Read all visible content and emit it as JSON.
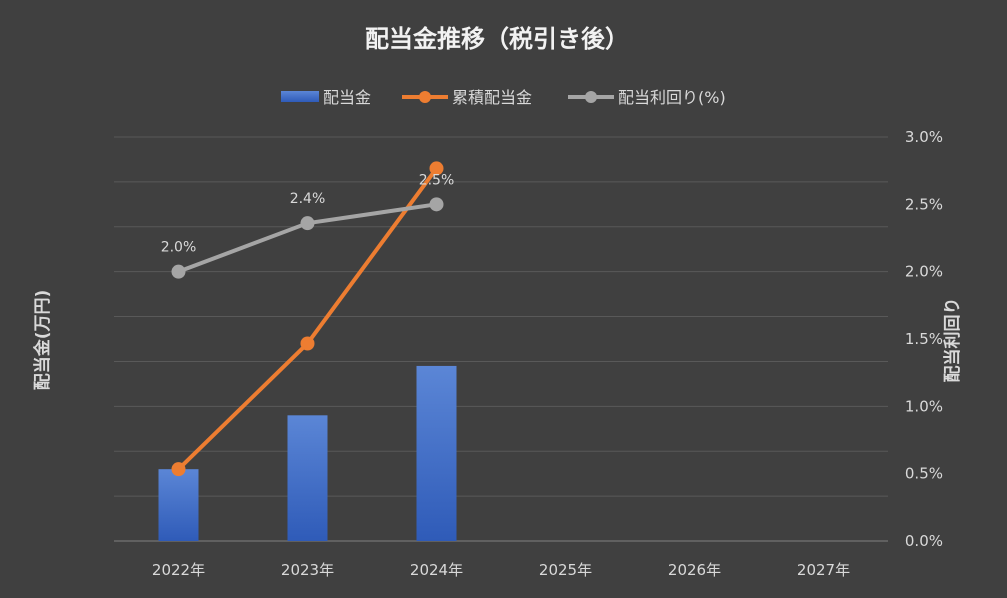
{
  "chart_data": {
    "type": "bar",
    "title": "配当金推移（税引き後）",
    "categories": [
      "2022年",
      "2023年",
      "2024年",
      "2025年",
      "2026年",
      "2027年"
    ],
    "series": [
      {
        "name": "配当金",
        "kind": "bar",
        "axis": "left",
        "values": [
          1.6,
          2.8,
          3.9,
          null,
          null,
          null
        ],
        "color": "#4472c4"
      },
      {
        "name": "累積配当金",
        "kind": "line",
        "axis": "left",
        "values": [
          1.6,
          4.4,
          8.3,
          null,
          null,
          null
        ],
        "color": "#ed7d31"
      },
      {
        "name": "配当利回り(%)",
        "kind": "line",
        "axis": "right",
        "values": [
          2.0,
          2.36,
          2.5,
          null,
          null,
          null
        ],
        "color": "#a5a5a5"
      }
    ],
    "data_labels": [
      "2.0%",
      "2.4%",
      "2.5%"
    ],
    "ylabel": "配当金(万円)",
    "y2label": "配当利回り",
    "ylim": [
      0,
      9
    ],
    "y2lim": [
      0,
      3.0
    ],
    "y2ticks": [
      "0.0%",
      "0.5%",
      "1.0%",
      "1.5%",
      "2.0%",
      "2.5%",
      "3.0%"
    ],
    "grid": true,
    "legend": "top-center",
    "background": "#404040",
    "gridline_color": "#595959"
  }
}
